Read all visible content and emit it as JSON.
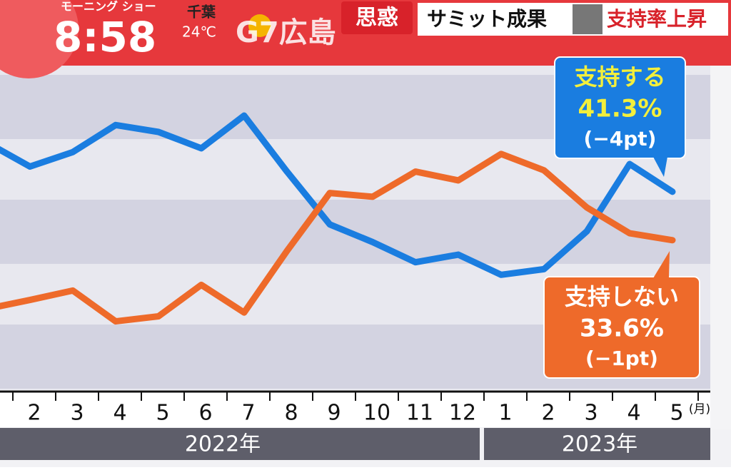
{
  "header": {
    "show": "モーニング ショー",
    "clock": "8:58",
    "weather_city": "千葉",
    "temperature": "24℃",
    "headline": "G7広島",
    "tag": "思惑",
    "subtitle": "サミット成果",
    "highlight": "支持率上昇"
  },
  "chart_data": {
    "type": "line",
    "categories": [
      null,
      "2",
      "3",
      "4",
      "5",
      "6",
      "7",
      "8",
      "9",
      "10",
      "11",
      "12",
      "1",
      "2",
      "3",
      "4",
      "5"
    ],
    "x_unit": "(月)",
    "x_groups": [
      "2022年",
      "2023年"
    ],
    "ylim": [
      10,
      61
    ],
    "series": [
      {
        "name": "支持する",
        "color": "#1a7de0",
        "values": [
          49.1,
          45.3,
          47.6,
          51.9,
          50.8,
          48.2,
          53.4,
          44.5,
          36.1,
          33.3,
          30.1,
          31.3,
          28.1,
          29.0,
          35.0,
          45.7,
          41.3
        ],
        "value_labels": [
          null,
          null,
          null,
          null,
          null,
          null,
          null,
          null,
          null,
          null,
          null,
          null,
          null,
          null,
          null,
          null,
          "41.3%"
        ],
        "change_label": "(−4pt)"
      },
      {
        "name": "支持しない",
        "color": "#ee6a2a",
        "values": [
          22.7,
          24.1,
          25.6,
          20.7,
          21.5,
          26.5,
          22.1,
          31.9,
          41.1,
          40.5,
          44.5,
          43.1,
          47.3,
          44.7,
          38.8,
          34.7,
          33.6
        ],
        "value_labels": [
          null,
          null,
          null,
          null,
          null,
          null,
          null,
          null,
          null,
          null,
          null,
          null,
          null,
          null,
          null,
          null,
          "33.6%"
        ],
        "change_label": "(−1pt)"
      }
    ]
  }
}
